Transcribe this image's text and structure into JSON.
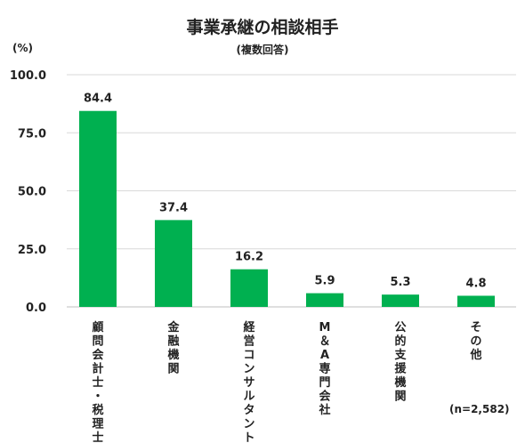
{
  "chart_data": {
    "type": "bar",
    "title": "事業承継の相談相手",
    "subtitle": "(複数回答)",
    "ylabel": "(%)",
    "note": "(n=2,582)",
    "categories": [
      "顧問会計士・税理士",
      "金融機関",
      "経営コンサルタント",
      "M＆A専門会社",
      "公的支援機関",
      "その他"
    ],
    "values": [
      84.4,
      37.4,
      16.2,
      5.9,
      5.3,
      4.8
    ],
    "value_labels": [
      "84.4",
      "37.4",
      "16.2",
      "5.9",
      "5.3",
      "4.8"
    ],
    "yticks": [
      0,
      25,
      50,
      75,
      100
    ],
    "ytick_labels": [
      "0.0",
      "25.0",
      "50.0",
      "75.0",
      "100.0"
    ],
    "ylim": [
      0,
      100
    ],
    "grid": true,
    "bar_color": "#00b050",
    "grid_color": "#d9d9d9"
  }
}
